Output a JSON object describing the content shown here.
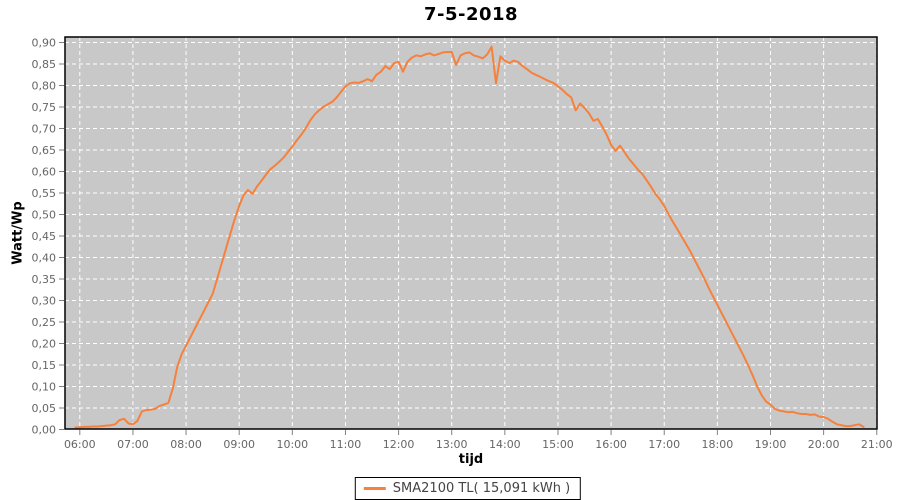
{
  "chart_data": {
    "type": "line",
    "title": "7-5-2018",
    "xlabel": "tijd",
    "ylabel": "Watt/Wp",
    "x_tick_labels": [
      "06:00",
      "07:00",
      "08:00",
      "09:00",
      "10:00",
      "11:00",
      "12:00",
      "13:00",
      "14:00",
      "15:00",
      "16:00",
      "17:00",
      "18:00",
      "19:00",
      "20:00",
      "21:00"
    ],
    "y_tick_labels": [
      "0,00",
      "0,05",
      "0,10",
      "0,15",
      "0,20",
      "0,25",
      "0,30",
      "0,35",
      "0,40",
      "0,45",
      "0,50",
      "0,55",
      "0,60",
      "0,65",
      "0,70",
      "0,75",
      "0,80",
      "0,85",
      "0,90"
    ],
    "x_tick_hours": [
      6,
      7,
      8,
      9,
      10,
      11,
      12,
      13,
      14,
      15,
      16,
      17,
      18,
      19,
      20,
      21
    ],
    "ylim": [
      0,
      0.9
    ],
    "y_step": 0.05,
    "grid": "white dashed on gray, both axes",
    "legend_position": "bottom-center",
    "series": [
      {
        "name": "SMA2100 TL( 15,091 kWh )",
        "color": "#F6813C",
        "start_hour_decimal": 5.9167,
        "start_time": "05:55",
        "interval_minutes": 5,
        "values": [
          0.005,
          0.005,
          0.006,
          0.006,
          0.007,
          0.007,
          0.008,
          0.009,
          0.01,
          0.012,
          0.022,
          0.025,
          0.014,
          0.012,
          0.02,
          0.042,
          0.045,
          0.046,
          0.048,
          0.055,
          0.058,
          0.062,
          0.095,
          0.145,
          0.175,
          0.195,
          0.215,
          0.235,
          0.255,
          0.275,
          0.295,
          0.315,
          0.35,
          0.385,
          0.42,
          0.455,
          0.49,
          0.52,
          0.545,
          0.557,
          0.548,
          0.565,
          0.578,
          0.592,
          0.605,
          0.613,
          0.622,
          0.632,
          0.645,
          0.658,
          0.672,
          0.685,
          0.7,
          0.718,
          0.732,
          0.742,
          0.75,
          0.756,
          0.762,
          0.772,
          0.785,
          0.798,
          0.805,
          0.807,
          0.806,
          0.81,
          0.815,
          0.81,
          0.825,
          0.832,
          0.845,
          0.838,
          0.852,
          0.855,
          0.832,
          0.855,
          0.865,
          0.87,
          0.868,
          0.872,
          0.875,
          0.87,
          0.873,
          0.877,
          0.878,
          0.878,
          0.848,
          0.87,
          0.875,
          0.877,
          0.87,
          0.867,
          0.863,
          0.872,
          0.89,
          0.805,
          0.868,
          0.858,
          0.852,
          0.858,
          0.855,
          0.845,
          0.838,
          0.83,
          0.825,
          0.82,
          0.815,
          0.81,
          0.806,
          0.798,
          0.79,
          0.78,
          0.772,
          0.742,
          0.758,
          0.748,
          0.735,
          0.718,
          0.722,
          0.705,
          0.685,
          0.662,
          0.648,
          0.66,
          0.645,
          0.63,
          0.618,
          0.605,
          0.595,
          0.58,
          0.565,
          0.548,
          0.535,
          0.52,
          0.5,
          0.482,
          0.465,
          0.448,
          0.43,
          0.412,
          0.392,
          0.372,
          0.352,
          0.33,
          0.31,
          0.29,
          0.27,
          0.25,
          0.23,
          0.21,
          0.19,
          0.17,
          0.148,
          0.125,
          0.1,
          0.08,
          0.065,
          0.058,
          0.048,
          0.044,
          0.042,
          0.04,
          0.041,
          0.038,
          0.036,
          0.036,
          0.034,
          0.035,
          0.03,
          0.029,
          0.025,
          0.018,
          0.012,
          0.01,
          0.008,
          0.008,
          0.01,
          0.012,
          0.006
        ]
      }
    ],
    "colors": {
      "page_background": "#FFFFFF",
      "plot_background": "#C8C8C8",
      "gridline": "#FFFFFF",
      "axis_border": "#000000",
      "tick_mark": "#808080",
      "tick_label": "#666666",
      "title_text": "#000000",
      "axis_label_text": "#000000",
      "legend_text": "#444444",
      "legend_border": "#000000"
    }
  }
}
